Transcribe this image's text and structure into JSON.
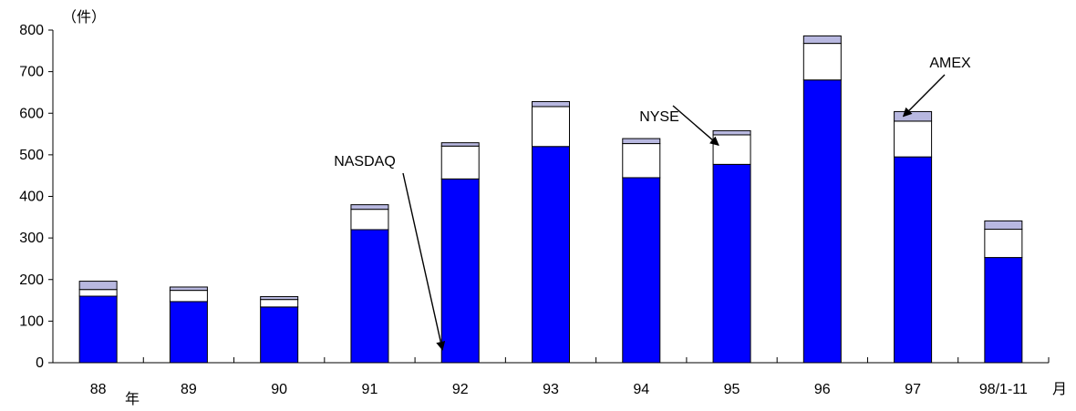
{
  "chart_data": {
    "type": "bar",
    "stacked": true,
    "y_unit_label": "（件）",
    "x_unit_label_left": "年",
    "x_unit_label_right": "月",
    "categories": [
      "88",
      "89",
      "90",
      "91",
      "92",
      "93",
      "94",
      "95",
      "96",
      "97",
      "98/1-11"
    ],
    "ylim": [
      0,
      800
    ],
    "yticks": [
      0,
      100,
      200,
      300,
      400,
      500,
      600,
      700,
      800
    ],
    "series": [
      {
        "name": "NASDAQ",
        "color": "#0000ff",
        "values": [
          160,
          147,
          134,
          320,
          442,
          520,
          445,
          477,
          680,
          495,
          253
        ]
      },
      {
        "name": "NYSE",
        "color": "#ffffff",
        "values": [
          16,
          27,
          18,
          49,
          79,
          96,
          82,
          71,
          88,
          86,
          68
        ]
      },
      {
        "name": "AMEX",
        "color": "#b8b8e0",
        "values": [
          20,
          8,
          7,
          11,
          8,
          12,
          12,
          10,
          18,
          23,
          20
        ]
      }
    ],
    "annotations": [
      {
        "text": "NASDAQ",
        "target_category": "92",
        "target_series": "NASDAQ"
      },
      {
        "text": "NYSE",
        "target_category": "95",
        "target_series": "NYSE"
      },
      {
        "text": "AMEX",
        "target_category": "97",
        "target_series": "AMEX"
      }
    ],
    "grid": false,
    "legend": "none"
  }
}
